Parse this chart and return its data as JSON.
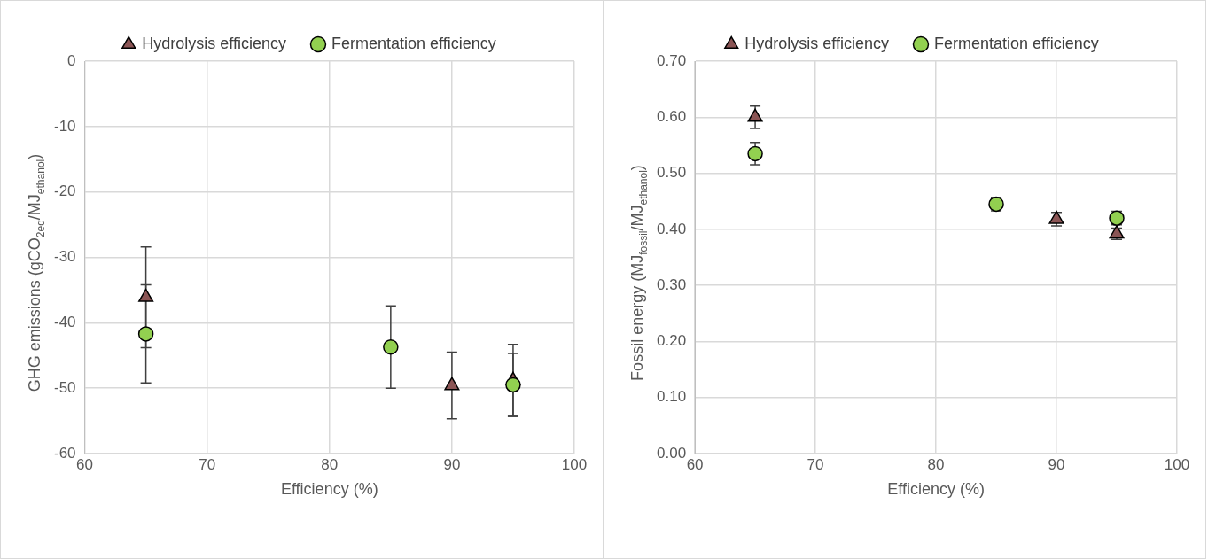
{
  "chart_data": [
    {
      "type": "scatter",
      "xlabel": "Efficiency (%)",
      "ylabel": "GHG emissions (gCO$_{2eq}$/MJ$_{ethanol}$)",
      "xlim": [
        60,
        100
      ],
      "xticks": [
        60,
        70,
        80,
        90,
        100
      ],
      "ylim": [
        -60,
        0
      ],
      "yticks": [
        -60,
        -50,
        -40,
        -30,
        -20,
        -10,
        0
      ],
      "grid": true,
      "legend": "top",
      "series": [
        {
          "name": "Hydrolysis efficiency",
          "color": "#8b5555",
          "marker": "triangle",
          "x": [
            65,
            90,
            95
          ],
          "values": [
            -36.1,
            -49.6,
            -48.8
          ],
          "errors": [
            7.7,
            5.1,
            5.5
          ]
        },
        {
          "name": "Fermentation efficiency",
          "color": "#92d050",
          "marker": "circle",
          "x": [
            65,
            85,
            95
          ],
          "values": [
            -41.7,
            -43.7,
            -49.5
          ],
          "errors": [
            7.5,
            6.3,
            4.8
          ]
        }
      ]
    },
    {
      "type": "scatter",
      "xlabel": "Efficiency (%)",
      "ylabel": "Fossil energy (MJ$_{fossil}$/MJ$_{ethanol}$)",
      "xlim": [
        60,
        100
      ],
      "xticks": [
        60,
        70,
        80,
        90,
        100
      ],
      "ylim": [
        0,
        0.7
      ],
      "yticks": [
        {
          "value": 0,
          "label": "0.00"
        },
        {
          "value": 0.1,
          "label": "0.10"
        },
        {
          "value": 0.2,
          "label": "0.20"
        },
        {
          "value": 0.3,
          "label": "0.30"
        },
        {
          "value": 0.4,
          "label": "0.40"
        },
        {
          "value": 0.5,
          "label": "0.50"
        },
        {
          "value": 0.6,
          "label": "0.60"
        },
        {
          "value": 0.7,
          "label": "0.70"
        }
      ],
      "grid": true,
      "legend": "top",
      "series": [
        {
          "name": "Hydrolysis efficiency",
          "color": "#8b5555",
          "marker": "triangle",
          "x": [
            65,
            90,
            95
          ],
          "values": [
            0.6,
            0.418,
            0.392
          ],
          "errors": [
            0.02,
            0.012,
            0.01
          ]
        },
        {
          "name": "Fermentation efficiency",
          "color": "#92d050",
          "marker": "circle",
          "x": [
            65,
            85,
            95
          ],
          "values": [
            0.535,
            0.445,
            0.42
          ],
          "errors": [
            0.02,
            0.012,
            0.012
          ]
        }
      ]
    }
  ]
}
